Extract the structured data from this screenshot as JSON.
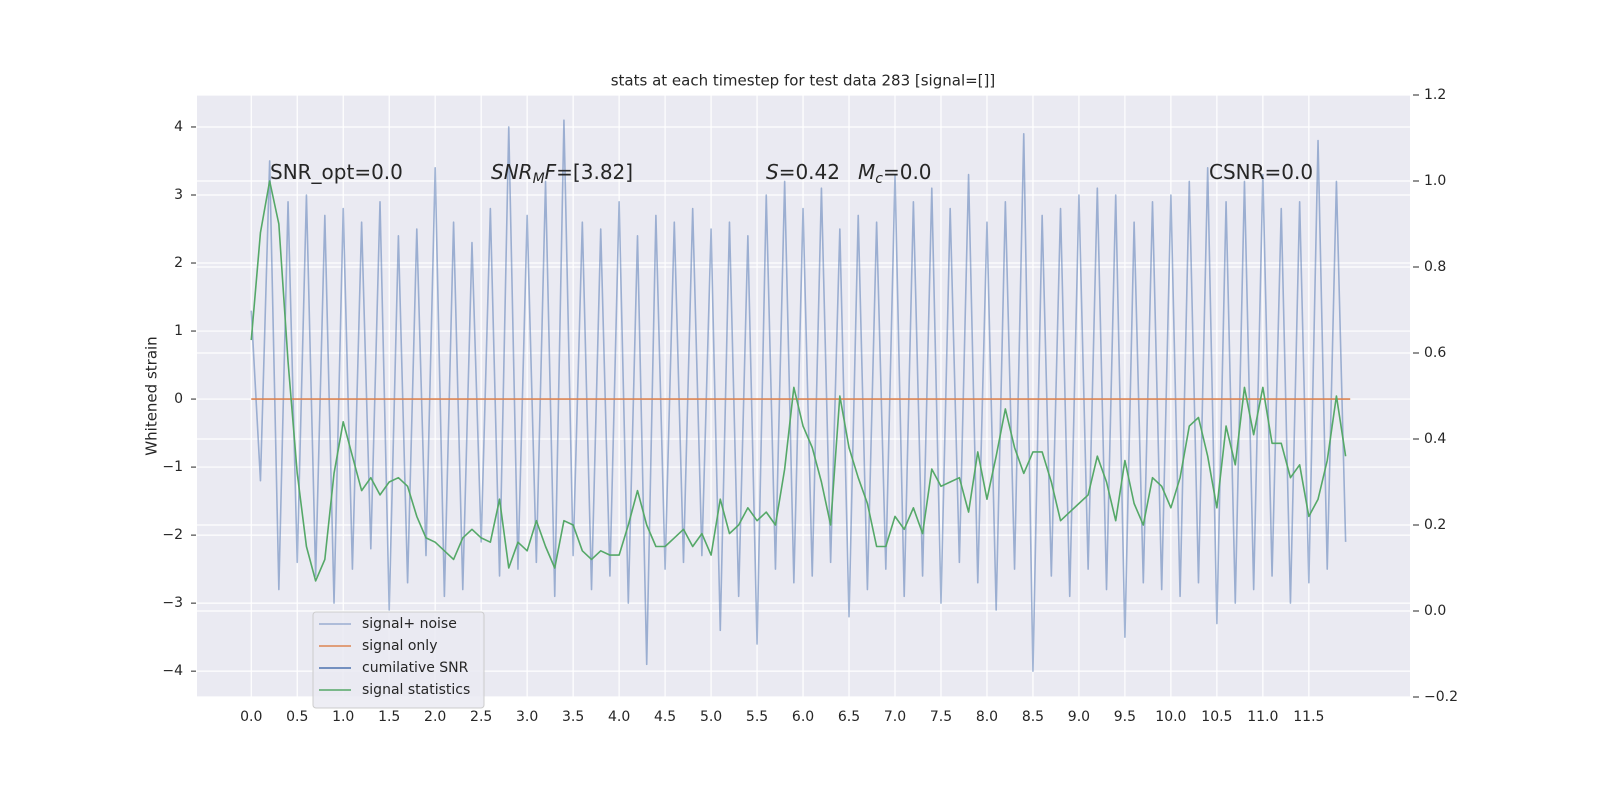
{
  "chart_data": {
    "type": "line",
    "title": "stats at each timestep for test data 283 [signal=[]]",
    "ylabel": "Whitened strain",
    "xlim": [
      -0.59,
      12.6
    ],
    "ylim": [
      -4.38,
      4.47
    ],
    "y2lim": [
      -0.2,
      1.2
    ],
    "xticks": [
      {
        "value": 0,
        "label": "0.0"
      },
      0.5,
      {
        "value": 1,
        "label": "1.0"
      },
      1.5,
      {
        "value": 2,
        "label": "2.0"
      },
      2.5,
      {
        "value": 3,
        "label": "3.0"
      },
      3.5,
      {
        "value": 4,
        "label": "4.0"
      },
      4.5,
      {
        "value": 5,
        "label": "5.0"
      },
      5.5,
      {
        "value": 6,
        "label": "6.0"
      },
      6.5,
      {
        "value": 7,
        "label": "7.0"
      },
      7.5,
      {
        "value": 8,
        "label": "8.0"
      },
      8.5,
      {
        "value": 9,
        "label": "9.0"
      },
      9.5,
      {
        "value": 10,
        "label": "10.0"
      },
      10.5,
      {
        "value": 11,
        "label": "11.0"
      },
      11.5
    ],
    "yticks": [
      {
        "value": -4,
        "label": "−4"
      },
      {
        "value": -3,
        "label": "−3"
      },
      {
        "value": -2,
        "label": "−2"
      },
      {
        "value": -1,
        "label": "−1"
      },
      0,
      1,
      2,
      3,
      4
    ],
    "y2ticks": [
      {
        "value": -0.2,
        "label": "−0.2"
      },
      {
        "value": 0,
        "label": "0.0"
      },
      0.2,
      0.4,
      0.6,
      0.8,
      {
        "value": 1,
        "label": "1.0"
      },
      1.2
    ],
    "grid": true,
    "legend": "lower left",
    "annotations": [
      [
        {
          "text": "SNR_opt=0.0"
        }
      ],
      [
        {
          "text": "SNR",
          "style": "italic"
        },
        {
          "text": "M",
          "style": "italic",
          "sub": true
        },
        {
          "text": "F",
          "style": "italic"
        },
        {
          "text": "=[3.82]"
        }
      ],
      [
        {
          "text": "S",
          "style": "italic"
        },
        {
          "text": "=0.42"
        }
      ],
      [
        {
          "text": "M",
          "style": "italic"
        },
        {
          "text": "c",
          "style": "italic",
          "sub": true
        },
        {
          "text": "=0.0"
        }
      ],
      [
        {
          "text": "CSNR=0.0"
        }
      ]
    ],
    "series": [
      {
        "name": "signal+ noise",
        "color": "#4c72b0",
        "alpha": 0.5,
        "x": [
          0,
          0.1,
          0.2,
          0.3,
          0.4,
          0.5,
          0.6,
          0.7,
          0.8,
          0.9,
          1,
          1.1,
          1.2,
          1.3,
          1.4,
          1.5,
          1.6,
          1.7,
          1.8,
          1.9,
          2,
          2.1,
          2.2,
          2.3,
          2.4,
          2.5,
          2.6,
          2.7,
          2.8,
          2.9,
          3,
          3.1,
          3.2,
          3.3,
          3.4,
          3.5,
          3.6,
          3.7,
          3.8,
          3.9,
          4,
          4.1,
          4.2,
          4.3,
          4.4,
          4.5,
          4.6,
          4.7,
          4.8,
          4.9,
          5,
          5.1,
          5.2,
          5.3,
          5.4,
          5.5,
          5.6,
          5.7,
          5.8,
          5.9,
          6,
          6.1,
          6.2,
          6.3,
          6.4,
          6.5,
          6.6,
          6.7,
          6.8,
          6.9,
          7,
          7.1,
          7.2,
          7.3,
          7.4,
          7.5,
          7.6,
          7.7,
          7.8,
          7.9,
          8,
          8.1,
          8.2,
          8.3,
          8.4,
          8.5,
          8.6,
          8.7,
          8.8,
          8.9,
          9,
          9.1,
          9.2,
          9.3,
          9.4,
          9.5,
          9.6,
          9.7,
          9.8,
          9.9,
          10,
          10.1,
          10.2,
          10.3,
          10.4,
          10.5,
          10.6,
          10.7,
          10.8,
          10.9,
          11,
          11.1,
          11.2,
          11.3,
          11.4,
          11.5,
          11.6,
          11.7,
          11.8,
          11.9
        ],
        "values": [
          1.3,
          -1.2,
          3.5,
          -2.8,
          2.9,
          -2.4,
          3.0,
          -2.6,
          2.7,
          -3.0,
          2.8,
          -2.5,
          2.6,
          -2.2,
          2.9,
          -3.1,
          2.4,
          -2.7,
          2.5,
          -2.3,
          3.4,
          -2.9,
          2.6,
          -2.8,
          2.3,
          -2.1,
          2.8,
          -2.6,
          4.0,
          -2.5,
          2.7,
          -2.4,
          3.2,
          -2.9,
          4.1,
          -2.3,
          2.6,
          -2.8,
          2.5,
          -2.6,
          2.9,
          -3.0,
          2.4,
          -3.9,
          2.7,
          -2.5,
          2.6,
          -2.4,
          2.8,
          -2.3,
          2.5,
          -3.4,
          2.6,
          -2.9,
          2.4,
          -3.6,
          3.0,
          -2.5,
          3.2,
          -2.7,
          2.8,
          -2.6,
          3.1,
          -2.4,
          2.5,
          -3.2,
          2.7,
          -2.8,
          2.6,
          -2.5,
          3.3,
          -2.9,
          2.9,
          -2.6,
          3.1,
          -3.0,
          2.8,
          -2.4,
          3.3,
          -2.7,
          2.6,
          -3.1,
          2.9,
          -2.5,
          3.9,
          -4.0,
          2.7,
          -2.6,
          2.8,
          -2.9,
          3.0,
          -2.5,
          3.1,
          -2.8,
          3.0,
          -3.5,
          2.6,
          -2.7,
          2.9,
          -2.8,
          3.0,
          -2.9,
          3.2,
          -2.7,
          3.4,
          -3.3,
          2.9,
          -3.0,
          3.2,
          -2.8,
          3.3,
          -2.6,
          2.8,
          -3.0,
          2.9,
          -2.7,
          3.8,
          -2.5,
          3.2,
          -2.1
        ]
      },
      {
        "name": "signal only",
        "color": "#dd8452",
        "x": [
          0,
          11.95
        ],
        "values": [
          0,
          0
        ]
      },
      {
        "name": "cumilative SNR",
        "color": "#4c72b0",
        "x": [],
        "values": []
      },
      {
        "name": "signal statistics",
        "color": "#55a868",
        "axis": "y2",
        "x": [
          0,
          0.1,
          0.2,
          0.3,
          0.4,
          0.5,
          0.6,
          0.7,
          0.8,
          0.9,
          1,
          1.1,
          1.2,
          1.3,
          1.4,
          1.5,
          1.6,
          1.7,
          1.8,
          1.9,
          2,
          2.1,
          2.2,
          2.3,
          2.4,
          2.5,
          2.6,
          2.7,
          2.8,
          2.9,
          3,
          3.1,
          3.2,
          3.3,
          3.4,
          3.5,
          3.6,
          3.7,
          3.8,
          3.9,
          4,
          4.1,
          4.2,
          4.3,
          4.4,
          4.5,
          4.6,
          4.7,
          4.8,
          4.9,
          5,
          5.1,
          5.2,
          5.3,
          5.4,
          5.5,
          5.6,
          5.7,
          5.8,
          5.9,
          6,
          6.1,
          6.2,
          6.3,
          6.4,
          6.5,
          6.6,
          6.7,
          6.8,
          6.9,
          7,
          7.1,
          7.2,
          7.3,
          7.4,
          7.5,
          7.6,
          7.7,
          7.8,
          7.9,
          8,
          8.1,
          8.2,
          8.3,
          8.4,
          8.5,
          8.6,
          8.7,
          8.8,
          8.9,
          9,
          9.1,
          9.2,
          9.3,
          9.4,
          9.5,
          9.6,
          9.7,
          9.8,
          9.9,
          10,
          10.1,
          10.2,
          10.3,
          10.4,
          10.5,
          10.6,
          10.7,
          10.8,
          10.9,
          11,
          11.1,
          11.2,
          11.3,
          11.4,
          11.5,
          11.6,
          11.7,
          11.8,
          11.9
        ],
        "values": [
          0.63,
          0.88,
          1.0,
          0.9,
          0.58,
          0.32,
          0.15,
          0.07,
          0.12,
          0.32,
          0.44,
          0.36,
          0.28,
          0.31,
          0.27,
          0.3,
          0.31,
          0.29,
          0.22,
          0.17,
          0.16,
          0.14,
          0.12,
          0.17,
          0.19,
          0.17,
          0.16,
          0.26,
          0.1,
          0.16,
          0.14,
          0.21,
          0.15,
          0.1,
          0.21,
          0.2,
          0.14,
          0.12,
          0.14,
          0.13,
          0.13,
          0.2,
          0.28,
          0.2,
          0.15,
          0.15,
          0.17,
          0.19,
          0.15,
          0.18,
          0.13,
          0.26,
          0.18,
          0.2,
          0.24,
          0.21,
          0.23,
          0.2,
          0.33,
          0.52,
          0.43,
          0.38,
          0.3,
          0.2,
          0.5,
          0.38,
          0.31,
          0.25,
          0.15,
          0.15,
          0.22,
          0.19,
          0.24,
          0.18,
          0.33,
          0.29,
          0.3,
          0.31,
          0.23,
          0.37,
          0.26,
          0.36,
          0.47,
          0.38,
          0.32,
          0.37,
          0.37,
          0.3,
          0.21,
          0.23,
          0.25,
          0.27,
          0.36,
          0.3,
          0.21,
          0.35,
          0.25,
          0.2,
          0.31,
          0.29,
          0.24,
          0.31,
          0.43,
          0.45,
          0.36,
          0.24,
          0.43,
          0.34,
          0.52,
          0.41,
          0.52,
          0.39,
          0.39,
          0.31,
          0.34,
          0.22,
          0.26,
          0.35,
          0.5,
          0.36
        ]
      }
    ]
  }
}
